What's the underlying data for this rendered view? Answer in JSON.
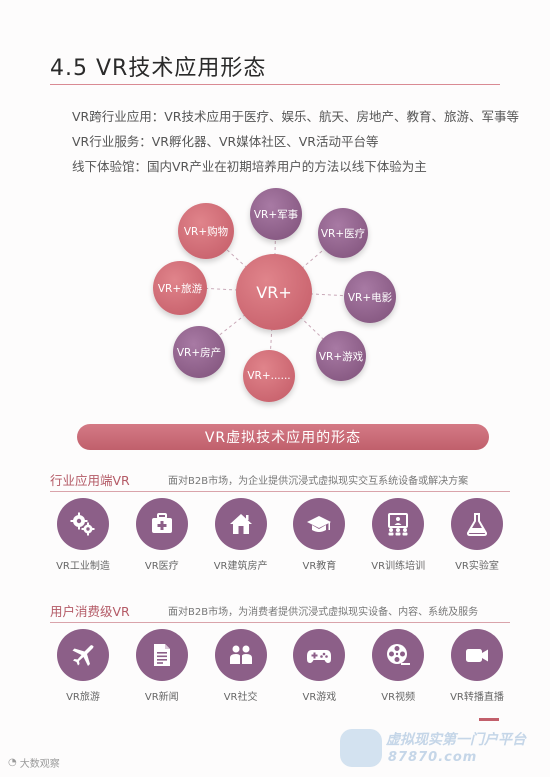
{
  "title": "4.5 VR技术应用形态",
  "intro": [
    "VR跨行业应用：VR技术应用于医疗、娱乐、航天、房地产、教育、旅游、军事等",
    "VR行业服务：VR孵化器、VR媒体社区、VR活动平台等",
    "线下体验馆：国内VR产业在初期培养用户的方法以线下体验为主"
  ],
  "hub": {
    "center": "VR+",
    "nodes": [
      "VR+军事",
      "VR+医疗",
      "VR+电影",
      "VR+游戏",
      "VR+......",
      "VR+房产",
      "VR+旅游",
      "VR+购物"
    ]
  },
  "banner": "VR虚拟技术应用的形态",
  "industry": {
    "title": "行业应用端VR",
    "desc": "面对B2B市场，为企业提供沉浸式虚拟现实交互系统设备或解决方案",
    "items": [
      {
        "label": "VR工业制造",
        "icon": "gears-icon"
      },
      {
        "label": "VR医疗",
        "icon": "medical-kit-icon"
      },
      {
        "label": "VR建筑房产",
        "icon": "house-icon"
      },
      {
        "label": "VR教育",
        "icon": "graduation-cap-icon"
      },
      {
        "label": "VR训练培训",
        "icon": "presentation-icon"
      },
      {
        "label": "VR实验室",
        "icon": "flask-icon"
      }
    ]
  },
  "consumer": {
    "title": "用户消费级VR",
    "desc": "面对B2B市场，为消费者提供沉浸式虚拟现实设备、内容、系统及服务",
    "items": [
      {
        "label": "VR旅游",
        "icon": "airplane-icon"
      },
      {
        "label": "VR新闻",
        "icon": "document-icon"
      },
      {
        "label": "VR社交",
        "icon": "people-icon"
      },
      {
        "label": "VR游戏",
        "icon": "gamepad-icon"
      },
      {
        "label": "VR视频",
        "icon": "film-reel-icon"
      },
      {
        "label": "VR转播直播",
        "icon": "video-camera-icon"
      }
    ]
  },
  "watermark": {
    "left": "大数观察",
    "right_line1": "虚拟现实第一门户平台",
    "right_line2": "87870.com"
  },
  "colors": {
    "accent": "#c25f6b",
    "purple": "#8c5f88"
  }
}
